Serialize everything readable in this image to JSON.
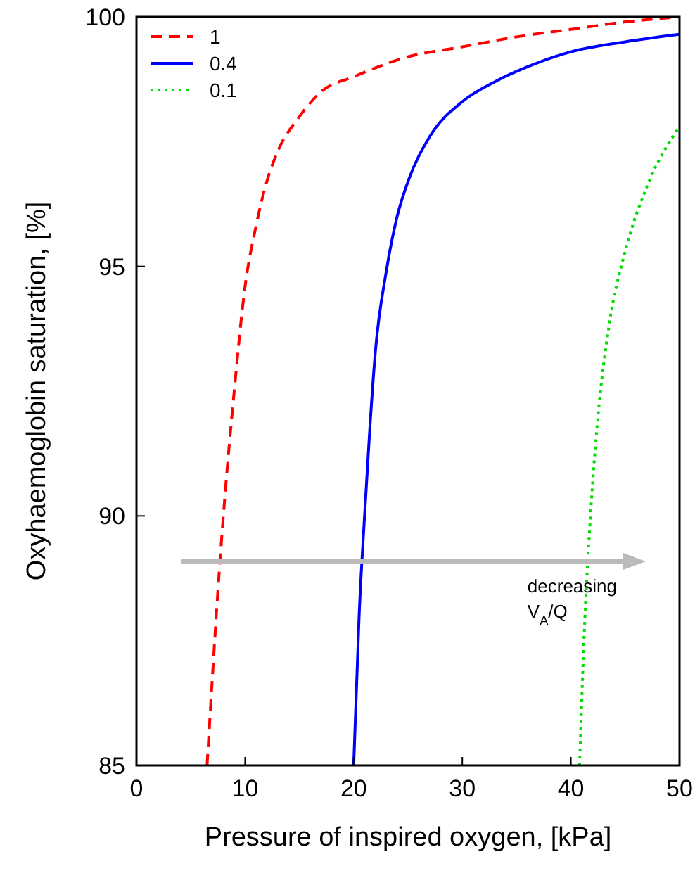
{
  "chart_data": {
    "type": "line",
    "xlabel": "Pressure of inspired oxygen, [kPa]",
    "ylabel": "Oxyhaemoglobin saturation, [%]",
    "xlim": [
      0,
      50
    ],
    "xticks": [
      0,
      10,
      20,
      30,
      40,
      50
    ],
    "ylim": [
      85,
      100
    ],
    "yticks": [
      85,
      90,
      95,
      100
    ],
    "grid": false,
    "legend": "top left",
    "series": [
      {
        "name": "1",
        "color": "#ff0000",
        "line_style": "dashed",
        "x": [
          6.5,
          7,
          7.5,
          8,
          9,
          10,
          11,
          12,
          13,
          15,
          17,
          20,
          25,
          30,
          35,
          40,
          45,
          50
        ],
        "values": [
          85,
          86.8,
          88.5,
          90,
          92.5,
          94.6,
          95.8,
          96.7,
          97.3,
          98,
          98.5,
          98.8,
          99.2,
          99.4,
          99.6,
          99.75,
          99.9,
          100
        ]
      },
      {
        "name": "0.4",
        "color": "#0000ff",
        "line_style": "solid",
        "x": [
          20,
          20.5,
          21,
          21.5,
          22,
          23,
          24,
          25,
          27,
          30,
          33,
          36,
          40,
          45,
          50
        ],
        "values": [
          85,
          88,
          90,
          91.8,
          93.3,
          94.9,
          96,
          96.7,
          97.6,
          98.3,
          98.7,
          99,
          99.3,
          99.5,
          99.65
        ]
      },
      {
        "name": "0.1",
        "color": "#00dd00",
        "line_style": "dotted",
        "x": [
          40.8,
          41.2,
          41.8,
          42.5,
          43.5,
          45,
          47,
          50
        ],
        "values": [
          85,
          87.5,
          90,
          92,
          93.8,
          95.3,
          96.6,
          97.8
        ]
      }
    ],
    "annotations": [
      "decreasing V$_{A}$/Q"
    ]
  }
}
